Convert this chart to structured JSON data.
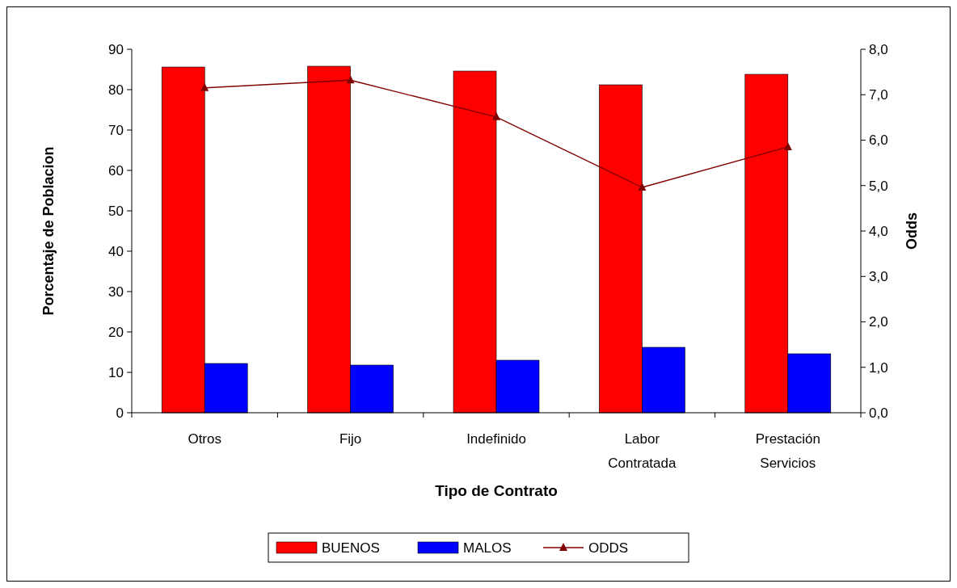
{
  "chart_data": {
    "type": "bar",
    "xlabel": "Tipo de Contrato",
    "ylabel": "Porcentaje de Poblacion",
    "y2label": "Odds",
    "categories": [
      "Otros",
      "Fijo",
      "Indefinido",
      "Labor Contratada",
      "Prestación Servicios"
    ],
    "series": [
      {
        "name": "BUENOS",
        "color": "#ff0000",
        "values": [
          85.6,
          85.8,
          84.6,
          81.2,
          83.8
        ]
      },
      {
        "name": "MALOS",
        "color": "#0000ff",
        "values": [
          12.2,
          11.8,
          13.0,
          16.2,
          14.6
        ]
      },
      {
        "name": "ODDS",
        "type": "line",
        "axis": "y2",
        "color": "#800000",
        "marker": "triangle",
        "values": [
          7.15,
          7.32,
          6.51,
          4.96,
          5.85
        ]
      }
    ],
    "ylim": [
      0,
      90
    ],
    "yticks": [
      0,
      10,
      20,
      30,
      40,
      50,
      60,
      70,
      80,
      90
    ],
    "y2lim": [
      0,
      8
    ],
    "y2ticks": [
      {
        "value": 0,
        "label": "0,0"
      },
      {
        "value": 1,
        "label": "1,0"
      },
      {
        "value": 2,
        "label": "2,0"
      },
      {
        "value": 3,
        "label": "3,0"
      },
      {
        "value": 4,
        "label": "4,0"
      },
      {
        "value": 5,
        "label": "5,0"
      },
      {
        "value": 6,
        "label": "6,0"
      },
      {
        "value": 7,
        "label": "7,0"
      },
      {
        "value": 8,
        "label": "8,0"
      }
    ],
    "legend": "bottom",
    "grid": false
  }
}
